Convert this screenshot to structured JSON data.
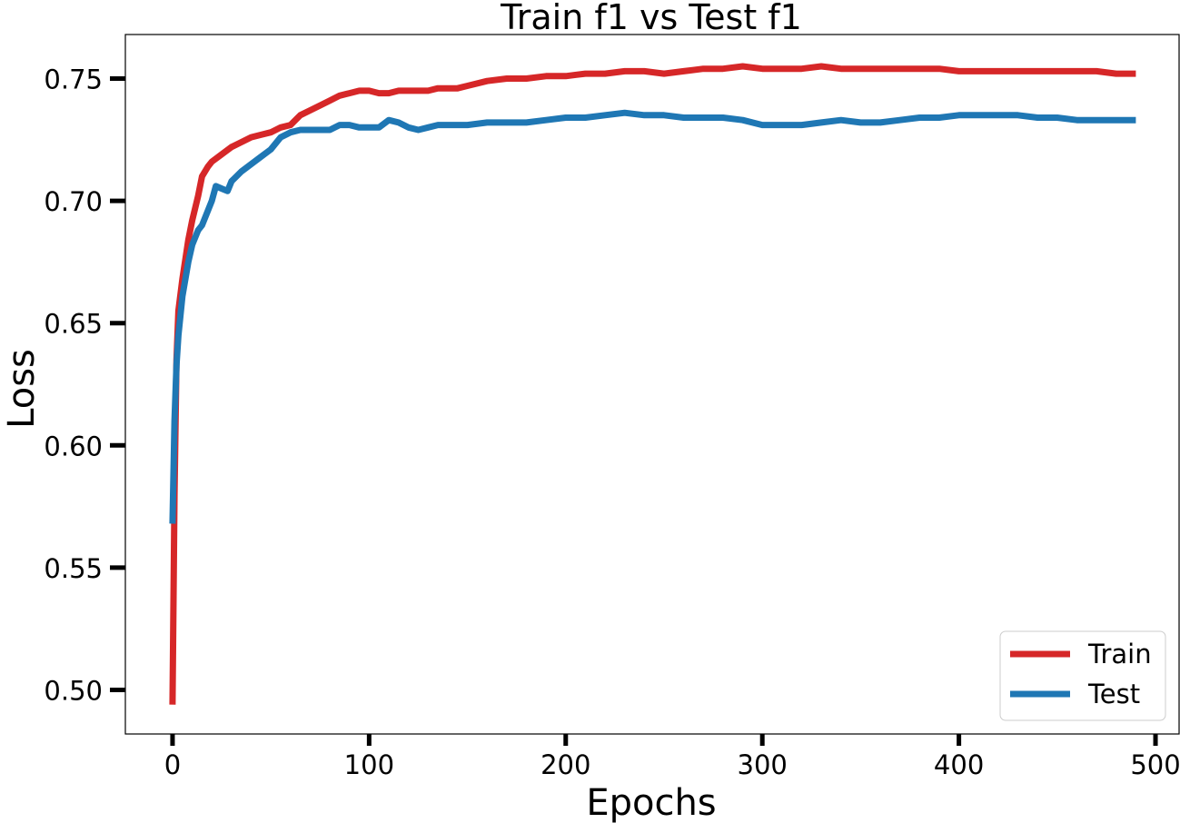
{
  "chart_data": {
    "type": "line",
    "title": "Train f1 vs Test f1",
    "xlabel": "Epochs",
    "ylabel": "Loss",
    "xlim": [
      -24,
      512
    ],
    "ylim": [
      0.482,
      0.768
    ],
    "xticks": [
      0,
      100,
      200,
      300,
      400,
      500
    ],
    "yticks": [
      0.5,
      0.55,
      0.6,
      0.65,
      0.7,
      0.75
    ],
    "grid": false,
    "legend_position": "bottom-right",
    "series": [
      {
        "name": "Train",
        "color": "#d62728",
        "x": [
          0,
          1,
          2,
          3,
          5,
          8,
          10,
          13,
          15,
          18,
          20,
          25,
          30,
          35,
          40,
          45,
          50,
          55,
          60,
          65,
          70,
          75,
          80,
          85,
          90,
          95,
          100,
          105,
          110,
          115,
          120,
          125,
          130,
          135,
          140,
          145,
          150,
          160,
          170,
          180,
          190,
          200,
          210,
          220,
          230,
          240,
          250,
          260,
          270,
          280,
          290,
          300,
          310,
          320,
          330,
          340,
          350,
          360,
          370,
          380,
          390,
          400,
          410,
          420,
          430,
          440,
          450,
          460,
          470,
          480,
          490
        ],
        "y": [
          0.494,
          0.58,
          0.635,
          0.655,
          0.668,
          0.684,
          0.692,
          0.702,
          0.71,
          0.714,
          0.716,
          0.719,
          0.722,
          0.724,
          0.726,
          0.727,
          0.728,
          0.73,
          0.731,
          0.735,
          0.737,
          0.739,
          0.741,
          0.743,
          0.744,
          0.745,
          0.745,
          0.744,
          0.744,
          0.745,
          0.745,
          0.745,
          0.745,
          0.746,
          0.746,
          0.746,
          0.747,
          0.749,
          0.75,
          0.75,
          0.751,
          0.751,
          0.752,
          0.752,
          0.753,
          0.753,
          0.752,
          0.753,
          0.754,
          0.754,
          0.755,
          0.754,
          0.754,
          0.754,
          0.755,
          0.754,
          0.754,
          0.754,
          0.754,
          0.754,
          0.754,
          0.753,
          0.753,
          0.753,
          0.753,
          0.753,
          0.753,
          0.753,
          0.753,
          0.752,
          0.752
        ]
      },
      {
        "name": "Test",
        "color": "#1f77b4",
        "x": [
          0,
          1,
          2,
          3,
          5,
          8,
          10,
          13,
          15,
          18,
          20,
          22,
          25,
          28,
          30,
          35,
          40,
          45,
          50,
          55,
          60,
          65,
          70,
          75,
          80,
          85,
          90,
          95,
          100,
          105,
          110,
          115,
          120,
          125,
          130,
          135,
          140,
          150,
          160,
          170,
          180,
          190,
          200,
          210,
          220,
          230,
          240,
          250,
          260,
          270,
          280,
          290,
          300,
          310,
          320,
          330,
          340,
          350,
          360,
          370,
          380,
          390,
          400,
          410,
          420,
          430,
          440,
          450,
          460,
          470,
          480,
          490
        ],
        "y": [
          0.568,
          0.61,
          0.633,
          0.645,
          0.661,
          0.675,
          0.682,
          0.688,
          0.69,
          0.696,
          0.7,
          0.706,
          0.705,
          0.704,
          0.708,
          0.712,
          0.715,
          0.718,
          0.721,
          0.726,
          0.728,
          0.729,
          0.729,
          0.729,
          0.729,
          0.731,
          0.731,
          0.73,
          0.73,
          0.73,
          0.733,
          0.732,
          0.73,
          0.729,
          0.73,
          0.731,
          0.731,
          0.731,
          0.732,
          0.732,
          0.732,
          0.733,
          0.734,
          0.734,
          0.735,
          0.736,
          0.735,
          0.735,
          0.734,
          0.734,
          0.734,
          0.733,
          0.731,
          0.731,
          0.731,
          0.732,
          0.733,
          0.732,
          0.732,
          0.733,
          0.734,
          0.734,
          0.735,
          0.735,
          0.735,
          0.735,
          0.734,
          0.734,
          0.733,
          0.733,
          0.733,
          0.733
        ]
      }
    ]
  }
}
